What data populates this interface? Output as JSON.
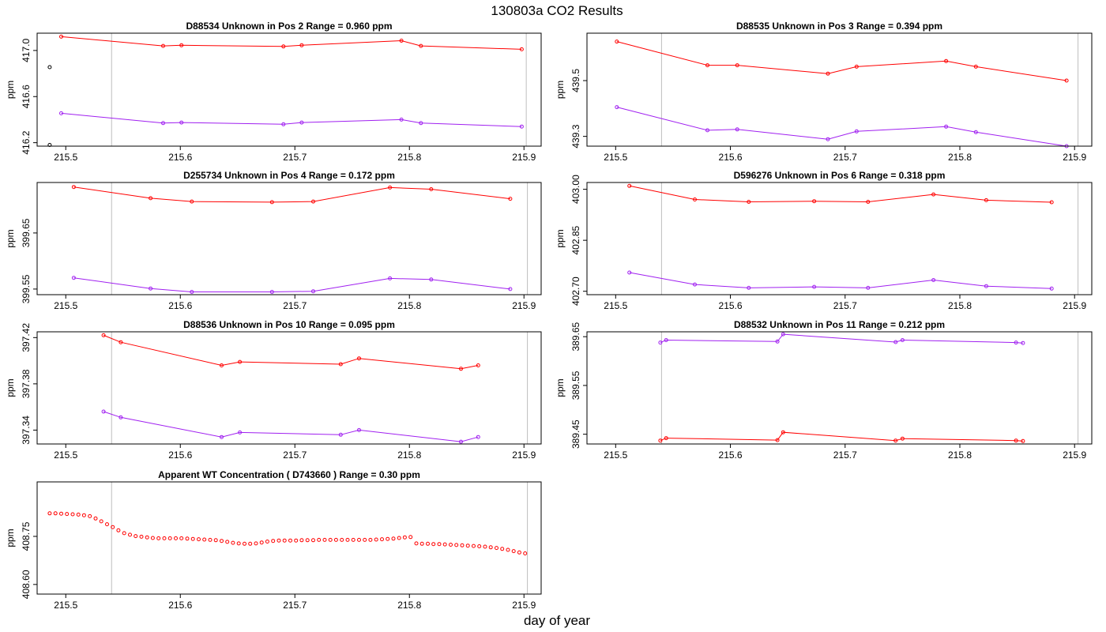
{
  "page": {
    "title": "130803a  CO2 Results",
    "xlabel": "day of year"
  },
  "colors": {
    "series_red": "#ff0000",
    "series_purple": "#a020f0",
    "marker_black": "#000000",
    "vline": "#bebebe",
    "axis": "#000000"
  },
  "chart_data": [
    {
      "type": "line",
      "title": "D88534    Unknown in Pos 2         Range =  0.960 ppm",
      "ylabel": "ppm",
      "xlim": [
        215.475,
        215.915
      ],
      "ylim": [
        416.17,
        417.15
      ],
      "xticks": [
        215.5,
        215.6,
        215.7,
        215.8,
        215.9
      ],
      "xtick_labels": [
        "215.5",
        "215.6",
        "215.7",
        "215.8",
        "215.9"
      ],
      "yticks": [
        416.2,
        416.6,
        417.0
      ],
      "ytick_labels": [
        "416.2",
        "416.6",
        "417.0"
      ],
      "vlines": [
        215.54,
        215.902
      ],
      "series": [
        {
          "color": "#ff0000",
          "x": [
            215.496,
            215.585,
            215.601,
            215.69,
            215.706,
            215.793,
            215.81,
            215.898
          ],
          "y": [
            417.12,
            417.04,
            417.045,
            417.035,
            417.045,
            417.085,
            417.04,
            417.01
          ]
        },
        {
          "color": "#a020f0",
          "x": [
            215.496,
            215.585,
            215.601,
            215.69,
            215.706,
            215.793,
            215.81,
            215.898
          ],
          "y": [
            416.455,
            416.37,
            416.375,
            416.36,
            416.375,
            416.4,
            416.37,
            416.34
          ]
        },
        {
          "color": "#000000",
          "line": false,
          "x": [
            215.486,
            215.486
          ],
          "y": [
            416.855,
            416.18
          ]
        }
      ]
    },
    {
      "type": "line",
      "title": "D88535    Unknown in Pos 3         Range =  0.394  ppm",
      "ylabel": "ppm",
      "xlim": [
        215.475,
        215.915
      ],
      "ylim": [
        439.265,
        439.67
      ],
      "xticks": [
        215.5,
        215.6,
        215.7,
        215.8,
        215.9
      ],
      "xtick_labels": [
        "215.5",
        "215.6",
        "215.7",
        "215.8",
        "215.9"
      ],
      "yticks": [
        439.3,
        439.5
      ],
      "ytick_labels": [
        "439.3",
        "439.5"
      ],
      "vlines": [
        215.54,
        215.903
      ],
      "series": [
        {
          "color": "#ff0000",
          "x": [
            215.501,
            215.58,
            215.606,
            215.685,
            215.71,
            215.788,
            215.814,
            215.893
          ],
          "y": [
            439.64,
            439.555,
            439.555,
            439.525,
            439.55,
            439.57,
            439.55,
            439.5
          ]
        },
        {
          "color": "#a020f0",
          "x": [
            215.501,
            215.58,
            215.606,
            215.685,
            215.71,
            215.788,
            215.814,
            215.893
          ],
          "y": [
            439.405,
            439.322,
            439.325,
            439.29,
            439.318,
            439.335,
            439.315,
            439.265
          ]
        }
      ]
    },
    {
      "type": "line",
      "title": "D255734    Unknown in Pos 4         Range =  0.172 ppm",
      "ylabel": "ppm",
      "xlim": [
        215.475,
        215.915
      ],
      "ylim": [
        399.54,
        399.74
      ],
      "xticks": [
        215.5,
        215.6,
        215.7,
        215.8,
        215.9
      ],
      "xtick_labels": [
        "215.5",
        "215.6",
        "215.7",
        "215.8",
        "215.9"
      ],
      "yticks": [
        399.55,
        399.65
      ],
      "ytick_labels": [
        "399.55",
        "399.65"
      ],
      "vlines": [
        215.54,
        215.903
      ],
      "series": [
        {
          "color": "#ff0000",
          "x": [
            215.507,
            215.574,
            215.61,
            215.68,
            215.716,
            215.783,
            215.819,
            215.888
          ],
          "y": [
            399.732,
            399.712,
            399.706,
            399.705,
            399.706,
            399.731,
            399.728,
            399.711
          ]
        },
        {
          "color": "#a020f0",
          "x": [
            215.507,
            215.574,
            215.61,
            215.68,
            215.716,
            215.783,
            215.819,
            215.888
          ],
          "y": [
            399.57,
            399.551,
            399.545,
            399.545,
            399.546,
            399.569,
            399.567,
            399.55
          ]
        }
      ]
    },
    {
      "type": "line",
      "title": "D596276    Unknown in Pos 6         Range =  0.318 ppm",
      "ylabel": "ppm",
      "xlim": [
        215.475,
        215.915
      ],
      "ylim": [
        402.69,
        403.02
      ],
      "xticks": [
        215.5,
        215.6,
        215.7,
        215.8,
        215.9
      ],
      "xtick_labels": [
        "215.5",
        "215.6",
        "215.7",
        "215.8",
        "215.9"
      ],
      "yticks": [
        402.7,
        402.85,
        403.0
      ],
      "ytick_labels": [
        "402.70",
        "402.85",
        "403.00"
      ],
      "vlines": [
        215.54,
        215.903
      ],
      "series": [
        {
          "color": "#ff0000",
          "x": [
            215.512,
            215.569,
            215.616,
            215.673,
            215.72,
            215.777,
            215.823,
            215.88
          ],
          "y": [
            403.01,
            402.97,
            402.963,
            402.965,
            402.963,
            402.985,
            402.968,
            402.962
          ]
        },
        {
          "color": "#a020f0",
          "x": [
            215.512,
            215.569,
            215.616,
            215.673,
            215.72,
            215.777,
            215.823,
            215.88
          ],
          "y": [
            402.755,
            402.72,
            402.71,
            402.713,
            402.71,
            402.733,
            402.715,
            402.708
          ]
        }
      ]
    },
    {
      "type": "line",
      "title": "D88536    Unknown in Pos 10         Range =  0.095 ppm",
      "ylabel": "ppm",
      "xlim": [
        215.475,
        215.915
      ],
      "ylim": [
        397.328,
        397.425
      ],
      "xticks": [
        215.5,
        215.6,
        215.7,
        215.8,
        215.9
      ],
      "xtick_labels": [
        "215.5",
        "215.6",
        "215.7",
        "215.8",
        "215.9"
      ],
      "yticks": [
        397.34,
        397.38,
        397.42
      ],
      "ytick_labels": [
        "397.34",
        "397.38",
        "397.42"
      ],
      "vlines": [
        215.54,
        215.903
      ],
      "series": [
        {
          "color": "#ff0000",
          "x": [
            215.533,
            215.548,
            215.636,
            215.652,
            215.74,
            215.756,
            215.845,
            215.86
          ],
          "y": [
            397.422,
            397.416,
            397.396,
            397.399,
            397.397,
            397.402,
            397.393,
            397.396
          ]
        },
        {
          "color": "#a020f0",
          "x": [
            215.533,
            215.548,
            215.636,
            215.652,
            215.74,
            215.756,
            215.845,
            215.86
          ],
          "y": [
            397.356,
            397.351,
            397.334,
            397.338,
            397.336,
            397.34,
            397.33,
            397.334
          ]
        }
      ]
    },
    {
      "type": "line",
      "title": "D88532    Unknown in Pos 11         Range =  0.212 ppm",
      "ylabel": "ppm",
      "xlim": [
        215.475,
        215.915
      ],
      "ylim": [
        389.43,
        389.66
      ],
      "xticks": [
        215.5,
        215.6,
        215.7,
        215.8,
        215.9
      ],
      "xtick_labels": [
        "215.5",
        "215.6",
        "215.7",
        "215.8",
        "215.9"
      ],
      "yticks": [
        389.45,
        389.55,
        389.65
      ],
      "ytick_labels": [
        "389.45",
        "389.55",
        "389.65"
      ],
      "vlines": [
        215.54,
        215.903
      ],
      "series": [
        {
          "color": "#a020f0",
          "x": [
            215.539,
            215.544,
            215.641,
            215.646,
            215.744,
            215.75,
            215.849,
            215.855
          ],
          "y": [
            389.638,
            389.643,
            389.64,
            389.655,
            389.639,
            389.643,
            389.638,
            389.637
          ]
        },
        {
          "color": "#ff0000",
          "x": [
            215.539,
            215.544,
            215.641,
            215.646,
            215.744,
            215.75,
            215.849,
            215.855
          ],
          "y": [
            389.437,
            389.442,
            389.438,
            389.454,
            389.437,
            389.441,
            389.437,
            389.436
          ]
        }
      ]
    },
    {
      "type": "scatter",
      "title": "Apparent WT Concentration ( D743660 )         Range = 0.30 ppm",
      "ylabel": "ppm",
      "xlim": [
        215.475,
        215.915
      ],
      "ylim": [
        408.57,
        408.92
      ],
      "xticks": [
        215.5,
        215.6,
        215.7,
        215.8,
        215.9
      ],
      "xtick_labels": [
        "215.5",
        "215.6",
        "215.7",
        "215.8",
        "215.9"
      ],
      "yticks": [
        408.6,
        408.75
      ],
      "ytick_labels": [
        "408.60",
        "408.75"
      ],
      "vlines": [
        215.54,
        215.903
      ],
      "series": [
        {
          "color": "#ff0000",
          "line": false,
          "x": [
            215.486,
            215.491,
            215.496,
            215.501,
            215.506,
            215.511,
            215.516,
            215.521,
            215.526,
            215.531,
            215.536,
            215.541,
            215.546,
            215.551,
            215.556,
            215.561,
            215.566,
            215.571,
            215.576,
            215.581,
            215.586,
            215.591,
            215.596,
            215.601,
            215.606,
            215.611,
            215.616,
            215.621,
            215.626,
            215.631,
            215.636,
            215.641,
            215.646,
            215.651,
            215.656,
            215.661,
            215.666,
            215.671,
            215.676,
            215.681,
            215.686,
            215.691,
            215.696,
            215.701,
            215.706,
            215.711,
            215.716,
            215.721,
            215.726,
            215.731,
            215.736,
            215.741,
            215.746,
            215.751,
            215.756,
            215.761,
            215.766,
            215.771,
            215.776,
            215.781,
            215.786,
            215.791,
            215.796,
            215.801,
            215.806,
            215.811,
            215.816,
            215.821,
            215.826,
            215.831,
            215.836,
            215.841,
            215.846,
            215.851,
            215.856,
            215.861,
            215.866,
            215.871,
            215.876,
            215.881,
            215.886,
            215.891,
            215.896,
            215.901
          ],
          "y": [
            408.822,
            408.822,
            408.821,
            408.82,
            408.819,
            408.818,
            408.816,
            408.813,
            408.806,
            408.797,
            408.788,
            408.779,
            408.769,
            408.76,
            408.755,
            408.751,
            408.749,
            408.747,
            408.745,
            408.744,
            408.744,
            408.744,
            408.744,
            408.744,
            408.743,
            408.742,
            408.741,
            408.74,
            408.739,
            408.738,
            408.736,
            408.733,
            408.73,
            408.728,
            408.727,
            408.727,
            408.728,
            408.731,
            408.734,
            408.736,
            408.737,
            408.737,
            408.737,
            408.737,
            408.738,
            408.738,
            408.738,
            408.739,
            408.739,
            408.739,
            408.739,
            408.739,
            408.739,
            408.739,
            408.739,
            408.739,
            408.739,
            408.74,
            408.741,
            408.742,
            408.743,
            408.745,
            408.747,
            408.748,
            408.728,
            408.727,
            408.727,
            408.726,
            408.726,
            408.725,
            408.724,
            408.723,
            408.722,
            408.721,
            408.72,
            408.719,
            408.718,
            408.716,
            408.714,
            408.711,
            408.708,
            408.704,
            408.7,
            408.697
          ]
        }
      ]
    }
  ]
}
